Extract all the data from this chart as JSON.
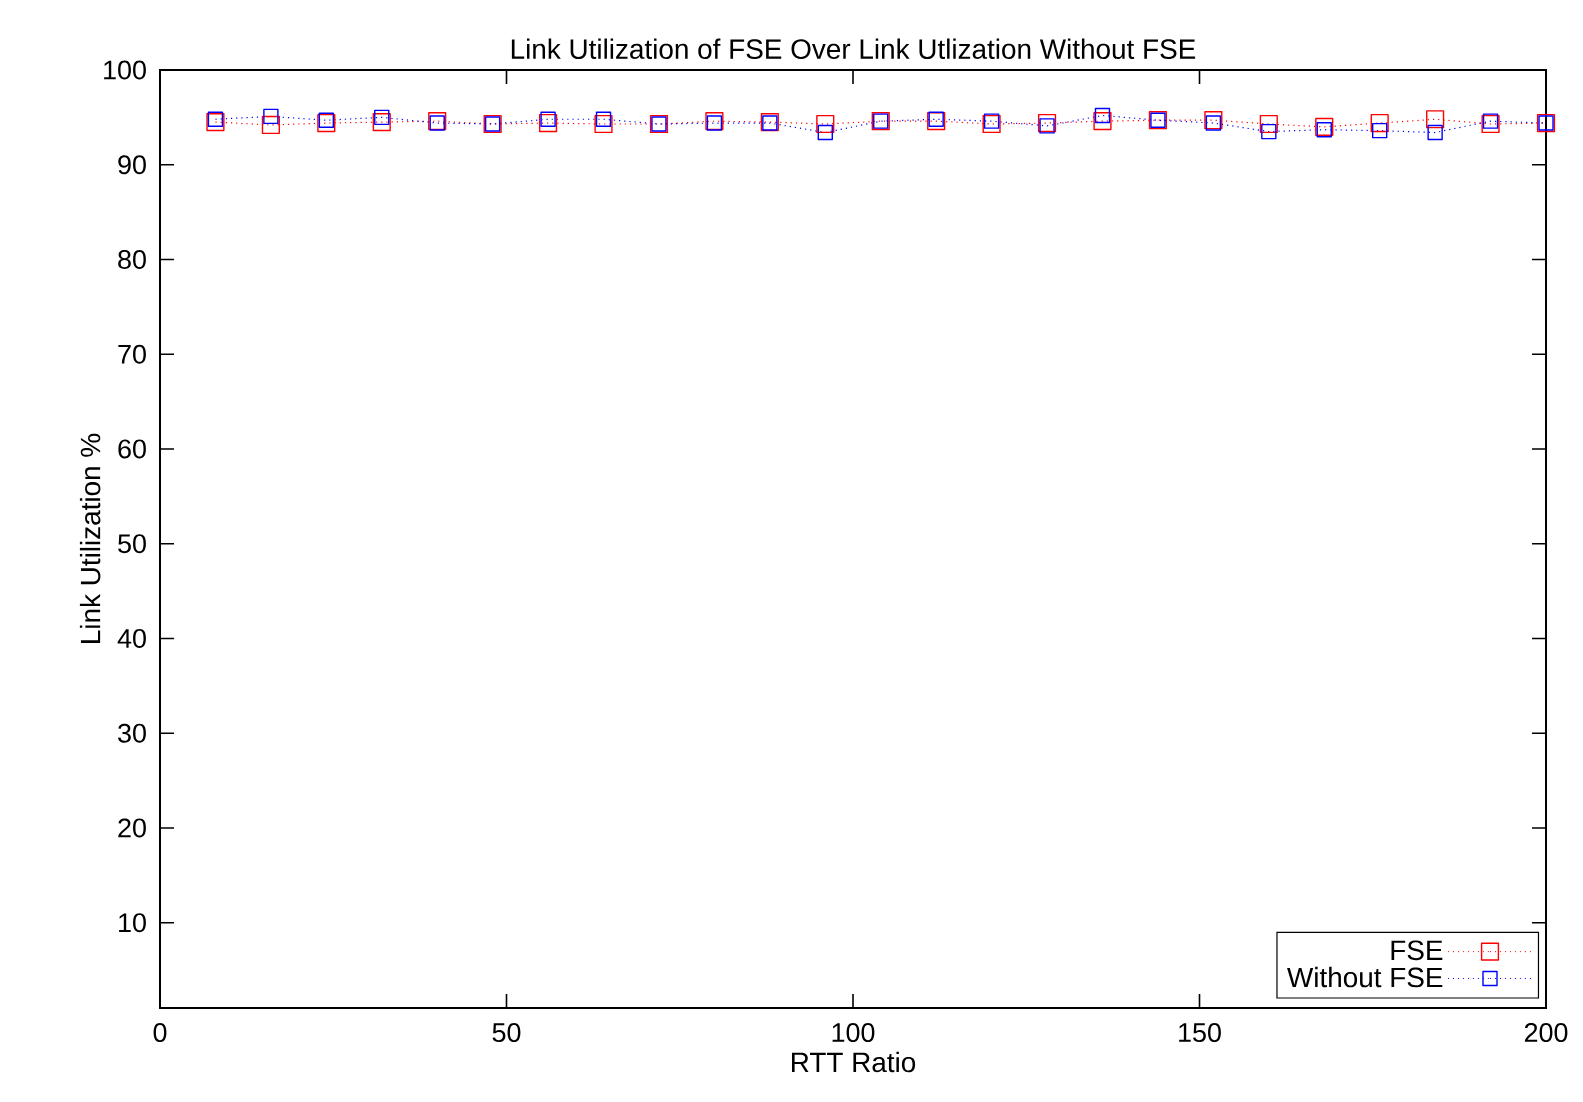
{
  "chart_data": {
    "type": "line",
    "title": "Link Utilization of FSE Over Link Utlization Without FSE",
    "xlabel": "RTT Ratio",
    "ylabel": "Link Utilization %",
    "x": [
      8,
      16,
      24,
      32,
      40,
      48,
      56,
      64,
      72,
      80,
      88,
      96,
      104,
      112,
      120,
      128,
      136,
      144,
      152,
      160,
      168,
      176,
      184,
      192,
      200
    ],
    "series": [
      {
        "name": "FSE",
        "color": "#ff0000",
        "values": [
          94.5,
          94.2,
          94.4,
          94.5,
          94.6,
          94.3,
          94.4,
          94.3,
          94.3,
          94.6,
          94.5,
          94.3,
          94.6,
          94.6,
          94.3,
          94.4,
          94.6,
          94.7,
          94.7,
          94.3,
          94.0,
          94.4,
          94.8,
          94.3,
          94.4
        ]
      },
      {
        "name": "Without FSE",
        "color": "#0000ff",
        "values": [
          94.8,
          95.1,
          94.7,
          95.0,
          94.4,
          94.3,
          94.8,
          94.8,
          94.3,
          94.4,
          94.4,
          93.4,
          94.6,
          94.8,
          94.6,
          94.1,
          95.2,
          94.7,
          94.4,
          93.5,
          93.7,
          93.6,
          93.4,
          94.6,
          94.4
        ]
      }
    ],
    "xlim": [
      0,
      200
    ],
    "xticks": [
      0,
      50,
      100,
      150,
      200
    ],
    "ylim": [
      1,
      100
    ],
    "yticks": [
      10,
      20,
      30,
      40,
      50,
      60,
      70,
      80,
      90,
      100
    ],
    "grid": false,
    "legend": "bottom right",
    "marker": "square",
    "line_style": "dotted"
  }
}
